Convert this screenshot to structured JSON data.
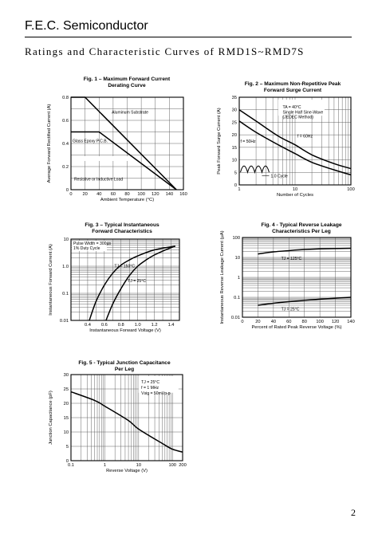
{
  "header": {
    "company": "F.E.C. Semiconductor",
    "subtitle": "Ratings and Characteristic Curves of RMD1S~RMD7S"
  },
  "footer": {
    "page_number": "2"
  },
  "chart_data": [
    {
      "id": "fig1",
      "type": "line",
      "title": [
        "Fig. 1 – Maximum Forward Current",
        "Derating Curve"
      ],
      "xlabel": "Ambient Temperature (°C)",
      "ylabel": "Average Forward Rectified Current (A)",
      "xlim": [
        0,
        160
      ],
      "ylim": [
        0,
        0.8
      ],
      "xscale": "linear",
      "yscale": "linear",
      "x_ticks": [
        0,
        20,
        40,
        60,
        80,
        100,
        120,
        140,
        160
      ],
      "x_tick_labels": [
        "0",
        "20",
        "40",
        "60",
        "80",
        "100",
        "120",
        "140",
        "160"
      ],
      "y_ticks": [
        0,
        0.2,
        0.4,
        0.6,
        0.8
      ],
      "y_tick_labels": [
        "0",
        "0.2",
        "0.4",
        "0.6",
        "0.8"
      ],
      "series": [
        {
          "name": "Aluminum Substrate",
          "points": [
            [
              0,
              0.8
            ],
            [
              20,
              0.8
            ],
            [
              150,
              0
            ]
          ]
        },
        {
          "name": "Glass Epoxy P.C.B.",
          "points": [
            [
              0,
              0.5
            ],
            [
              40,
              0.5
            ],
            [
              150,
              0
            ]
          ]
        }
      ],
      "annotations": [
        "Aluminum Substrate",
        "Glass Epoxy P.C.B.",
        "Resistive or Inductive Load"
      ]
    },
    {
      "id": "fig2",
      "type": "line",
      "title": [
        "Fig. 2 – Maximum Non-Repetitive Peak",
        "Forward Surge Current"
      ],
      "xlabel": "Number of Cycles",
      "ylabel": "Peak Forward Surge Current (A)",
      "xlim": [
        1,
        100
      ],
      "ylim": [
        0,
        35
      ],
      "xscale": "log",
      "yscale": "linear",
      "x_ticks": [
        1,
        10,
        100
      ],
      "x_tick_labels": [
        "1",
        "10",
        "100"
      ],
      "y_ticks": [
        0,
        5,
        10,
        15,
        20,
        25,
        30,
        35
      ],
      "y_tick_labels": [
        "0",
        "5",
        "10",
        "15",
        "20",
        "25",
        "30",
        "35"
      ],
      "series": [
        {
          "name": "f = 60Hz",
          "points": [
            [
              1,
              30
            ],
            [
              2,
              25.5
            ],
            [
              5,
              19.5
            ],
            [
              10,
              16
            ],
            [
              20,
              12
            ],
            [
              50,
              8.5
            ],
            [
              100,
              6.5
            ]
          ]
        },
        {
          "name": "f = 50Hz",
          "points": [
            [
              1,
              25.5
            ],
            [
              2,
              21
            ],
            [
              5,
              16
            ],
            [
              10,
              12.5
            ],
            [
              20,
              9
            ],
            [
              50,
              6
            ],
            [
              100,
              4
            ]
          ]
        }
      ],
      "annotations": [
        "TA = 40°C",
        "Single Half Sine-Wave",
        "(JEDEC Method)",
        "f = 60Hz",
        "f = 50Hz",
        "1.0 Cycle"
      ]
    },
    {
      "id": "fig3",
      "type": "line",
      "title": [
        "Fig. 3 – Typical Instantaneous",
        "Forward Characteristics"
      ],
      "xlabel": "Instantaneous Forward Voltage (V)",
      "ylabel": "Instantaneous Forward Current (A)",
      "xlim": [
        0.2,
        1.5
      ],
      "ylim": [
        0.01,
        10
      ],
      "xscale": "linear",
      "yscale": "log",
      "x_ticks": [
        0.4,
        0.6,
        0.8,
        1.0,
        1.2,
        1.4
      ],
      "x_tick_labels": [
        "0.4",
        "0.6",
        "0.8",
        "1.0",
        "1.2",
        "1.4"
      ],
      "y_ticks": [
        0.01,
        0.1,
        1,
        10
      ],
      "y_tick_labels": [
        "0.01",
        "0.1",
        "1.0",
        "10"
      ],
      "series": [
        {
          "name": "TJ = 150°C",
          "points": [
            [
              0.42,
              0.01
            ],
            [
              0.5,
              0.05
            ],
            [
              0.6,
              0.2
            ],
            [
              0.7,
              0.55
            ],
            [
              0.8,
              1.1
            ],
            [
              0.9,
              1.7
            ],
            [
              1.0,
              2.4
            ],
            [
              1.2,
              4
            ],
            [
              1.45,
              5.5
            ]
          ]
        },
        {
          "name": "TJ = 25°C",
          "points": [
            [
              0.62,
              0.01
            ],
            [
              0.7,
              0.04
            ],
            [
              0.8,
              0.15
            ],
            [
              0.9,
              0.45
            ],
            [
              1.0,
              1.0
            ],
            [
              1.1,
              1.7
            ],
            [
              1.2,
              2.6
            ],
            [
              1.35,
              4.2
            ],
            [
              1.45,
              5.5
            ]
          ]
        }
      ],
      "annotations": [
        "Pulse Width = 300µs",
        "1% Duty Cycle",
        "TJ = 150°C",
        "TJ = 25°C"
      ]
    },
    {
      "id": "fig4",
      "type": "line",
      "title": [
        "Fig. 4 - Typical Reverse Leakage",
        "Characteristics Per Leg"
      ],
      "xlabel": "Percent of Rated Peak Reverse Voltage (%)",
      "ylabel": "Instantaneous Reverse Leakage Current (µA)",
      "xlim": [
        0,
        140
      ],
      "ylim": [
        0.01,
        100
      ],
      "xscale": "linear",
      "yscale": "log",
      "x_ticks": [
        0,
        20,
        40,
        60,
        80,
        100,
        120,
        140
      ],
      "x_tick_labels": [
        "0",
        "20",
        "40",
        "60",
        "80",
        "100",
        "120",
        "140"
      ],
      "y_ticks": [
        0.01,
        0.1,
        1,
        10,
        100
      ],
      "y_tick_labels": [
        "0.01",
        "0.1",
        "1",
        "10",
        "100"
      ],
      "series": [
        {
          "name": "TJ = 125°C",
          "points": [
            [
              20,
              15
            ],
            [
              40,
              19
            ],
            [
              60,
              22
            ],
            [
              80,
              25
            ],
            [
              100,
              27
            ],
            [
              140,
              29
            ]
          ]
        },
        {
          "name": "TJ = 25°C",
          "points": [
            [
              20,
              0.04
            ],
            [
              40,
              0.05
            ],
            [
              60,
              0.06
            ],
            [
              80,
              0.07
            ],
            [
              100,
              0.08
            ],
            [
              140,
              0.1
            ]
          ]
        }
      ],
      "annotations": [
        "TJ = 125°C",
        "TJ = 25°C"
      ]
    },
    {
      "id": "fig5",
      "type": "line",
      "title": [
        "Fig. 5 - Typical Junction Capacitance",
        "Per Leg"
      ],
      "xlabel": "Reverse Voltage (V)",
      "ylabel": "Junction Capacitance (pF)",
      "xlim": [
        0.1,
        200
      ],
      "ylim": [
        0,
        30
      ],
      "xscale": "log",
      "yscale": "linear",
      "x_ticks": [
        0.1,
        1,
        10,
        100,
        200
      ],
      "x_tick_labels": [
        "0.1",
        "1",
        "10",
        "100",
        "200"
      ],
      "y_ticks": [
        0,
        5,
        10,
        15,
        20,
        25,
        30
      ],
      "y_tick_labels": [
        "0",
        "5",
        "10",
        "15",
        "20",
        "25",
        "30"
      ],
      "series": [
        {
          "name": "Junction Capacitance",
          "points": [
            [
              0.1,
              24
            ],
            [
              0.5,
              21
            ],
            [
              1,
              19
            ],
            [
              5,
              14
            ],
            [
              10,
              11
            ],
            [
              50,
              6
            ],
            [
              100,
              4
            ],
            [
              200,
              3
            ]
          ]
        }
      ],
      "annotations": [
        "TJ = 25°C",
        "f = 1 MHz",
        "Vsig = 50mVp-p"
      ]
    }
  ]
}
